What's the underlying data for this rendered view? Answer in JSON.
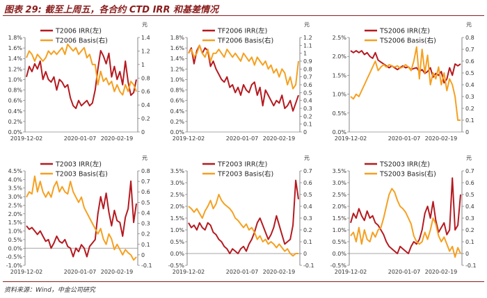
{
  "title": "图表 29: 截至上周五，各合约 CTD IRR 和基差情况",
  "source": "资料来源：Wind，中金公司研究",
  "colors": {
    "irr": "#b5191f",
    "basis": "#f5a020",
    "axis": "#666666",
    "zero": "#888888"
  },
  "chart_data": [
    {
      "type": "line",
      "name": "T2006",
      "legend": [
        "T2006 IRR(左)",
        "T2006 Basis(右)"
      ],
      "right_unit": "元",
      "x_ticks": [
        "2019-12-02",
        "2020-01-07",
        "2020-02-19"
      ],
      "left_ticks": [
        "0.0%",
        "0.2%",
        "0.4%",
        "0.6%",
        "0.8%",
        "1.0%",
        "1.2%",
        "1.4%",
        "1.6%",
        "1.8%"
      ],
      "right_ticks": [
        "0",
        "0.2",
        "0.4",
        "0.6",
        "0.8",
        "1",
        "1.2",
        "1.4"
      ],
      "ylim_left": [
        0,
        1.8
      ],
      "ylim_right": [
        0,
        1.4
      ],
      "series": [
        {
          "name": "T2006 IRR(左)",
          "axis": "left",
          "values": [
            1.05,
            1.25,
            1.15,
            1.3,
            1.2,
            1.35,
            1.0,
            1.15,
            1.0,
            0.95,
            1.05,
            0.8,
            1.0,
            0.95,
            0.85,
            0.9,
            0.65,
            0.5,
            0.45,
            0.6,
            0.5,
            0.55,
            0.6,
            0.5,
            0.55,
            0.8,
            1.2,
            1.55,
            1.45,
            1.3,
            1.5,
            1.05,
            1.25,
            1.0,
            1.15,
            0.9,
            1.35,
            0.95,
            0.7,
            0.75,
            1.0
          ]
        },
        {
          "name": "T2006 Basis(右)",
          "axis": "right",
          "values": [
            1.1,
            1.2,
            1.15,
            1.05,
            1.15,
            1.1,
            1.05,
            1.1,
            1.2,
            1.15,
            1.2,
            1.15,
            1.2,
            1.25,
            1.15,
            1.3,
            1.25,
            1.2,
            1.25,
            1.15,
            1.2,
            1.25,
            1.1,
            1.15,
            1.0,
            1.0,
            0.7,
            0.9,
            0.75,
            0.8,
            0.7,
            0.75,
            0.6,
            0.7,
            0.6,
            0.55,
            0.7,
            0.6,
            0.75,
            0.7,
            0.6
          ]
        }
      ]
    },
    {
      "type": "line",
      "name": "TF2006",
      "legend": [
        "TF2006 IRR(左)",
        "TF2006 Basis(右)"
      ],
      "right_unit": "元",
      "x_ticks": [
        "2019-12-02",
        "2020-01-07",
        "2020-02-19"
      ],
      "left_ticks": [
        "0.0%",
        "0.2%",
        "0.4%",
        "0.6%",
        "0.8%",
        "1.0%",
        "1.2%",
        "1.4%",
        "1.6%",
        "1.8%"
      ],
      "right_ticks": [
        "0",
        "0.1",
        "0.2",
        "0.3",
        "0.4",
        "0.5",
        "0.6",
        "0.7",
        "0.8",
        "0.9",
        "1",
        "1.1",
        "1.2"
      ],
      "ylim_left": [
        0,
        1.8
      ],
      "ylim_right": [
        0,
        1.2
      ],
      "series": [
        {
          "name": "TF2006 IRR(左)",
          "axis": "left",
          "values": [
            1.5,
            1.6,
            1.3,
            1.55,
            1.65,
            1.5,
            1.6,
            1.55,
            1.25,
            1.35,
            1.2,
            1.1,
            1.0,
            0.95,
            1.05,
            0.85,
            0.9,
            0.75,
            0.85,
            0.7,
            0.9,
            0.8,
            0.75,
            0.9,
            0.95,
            0.7,
            0.85,
            0.5,
            0.8,
            0.7,
            0.6,
            0.5,
            0.6,
            0.55,
            0.7,
            0.45,
            0.5,
            0.6,
            0.4,
            0.55,
            0.7
          ]
        },
        {
          "name": "TF2006 Basis(右)",
          "axis": "right",
          "values": [
            1.0,
            1.05,
            0.95,
            1.0,
            1.1,
            1.0,
            0.95,
            1.05,
            0.9,
            1.0,
            1.0,
            1.05,
            1.0,
            0.95,
            1.05,
            1.0,
            0.95,
            1.0,
            0.95,
            0.9,
            1.0,
            0.95,
            0.9,
            0.95,
            0.85,
            0.95,
            0.9,
            0.85,
            0.9,
            0.8,
            0.85,
            0.75,
            0.8,
            0.7,
            0.8,
            0.75,
            0.6,
            0.7,
            0.55,
            0.6,
            0.9
          ]
        }
      ]
    },
    {
      "type": "line",
      "name": "TS2006",
      "legend": [
        "TS2006 IRR(左)",
        "TS2006 Basis(右)"
      ],
      "right_unit": "元",
      "x_ticks": [
        "2019-12-02",
        "2020-01-07",
        "2020-02-19"
      ],
      "left_ticks": [
        "0.0%",
        "0.5%",
        "1.0%",
        "1.5%",
        "2.0%",
        "2.5%"
      ],
      "right_ticks": [
        "0",
        "0.1",
        "0.2",
        "0.3",
        "0.4",
        "0.5",
        "0.6",
        "0.7",
        "0.8"
      ],
      "ylim_left": [
        0,
        2.5
      ],
      "ylim_right": [
        0,
        0.8
      ],
      "series": [
        {
          "name": "TS2006 IRR(左)",
          "axis": "left",
          "values": [
            2.15,
            2.1,
            2.15,
            2.1,
            2.15,
            2.05,
            2.1,
            2.0,
            1.95,
            2.1,
            1.9,
            1.85,
            1.8,
            1.75,
            1.7,
            1.75,
            1.7,
            1.65,
            1.7,
            1.75,
            1.7,
            1.72,
            1.65,
            1.68,
            1.7,
            1.6,
            1.65,
            1.55,
            1.6,
            1.7,
            1.45,
            1.55,
            1.5,
            1.6,
            1.3,
            1.4,
            1.7,
            1.5,
            1.8,
            1.75,
            1.8
          ]
        },
        {
          "name": "TS2006 Basis(右)",
          "axis": "right",
          "values": [
            0.3,
            0.28,
            0.32,
            0.3,
            0.35,
            0.4,
            0.45,
            0.5,
            0.55,
            0.6,
            0.52,
            0.55,
            0.57,
            0.55,
            0.57,
            0.56,
            0.55,
            0.56,
            0.54,
            0.55,
            0.57,
            0.55,
            0.52,
            0.6,
            0.72,
            0.45,
            0.7,
            0.5,
            0.65,
            0.4,
            0.5,
            0.45,
            0.55,
            0.4,
            0.5,
            0.35,
            0.45,
            0.4,
            0.3,
            0.1,
            0.1
          ]
        }
      ]
    },
    {
      "type": "line",
      "name": "T2003",
      "legend": [
        "T2003 IRR(左)",
        "T2003 Basis(右)"
      ],
      "right_unit": "元",
      "x_ticks": [
        "2019-12-02",
        "2020-01-07",
        "2020-02-19"
      ],
      "left_ticks": [
        "-1.0%",
        "-0.5%",
        "0.0%",
        "0.5%",
        "1.0%",
        "1.5%",
        "2.0%",
        "2.5%",
        "3.0%",
        "3.5%",
        "4.0%",
        "4.5%"
      ],
      "right_ticks": [
        "-0.1",
        "0",
        "0.1",
        "0.2",
        "0.3",
        "0.4",
        "0.5",
        "0.6",
        "0.7",
        "0.8"
      ],
      "ylim_left": [
        -1.0,
        4.5
      ],
      "ylim_right": [
        -0.1,
        0.8
      ],
      "series": [
        {
          "name": "T2003 IRR(左)",
          "axis": "left",
          "values": [
            1.3,
            1.1,
            1.2,
            1.0,
            0.8,
            1.0,
            0.7,
            0.4,
            0.5,
            0.0,
            0.3,
            0.7,
            0.4,
            0.3,
            0.5,
            0.1,
            0.0,
            -0.5,
            0.0,
            -0.2,
            0.2,
            0.0,
            -0.5,
            0.1,
            0.3,
            0.5,
            2.0,
            3.0,
            2.3,
            3.2,
            2.1,
            1.3,
            2.2,
            1.6,
            1.5,
            0.7,
            1.8,
            2.3,
            3.9,
            1.5,
            2.6
          ]
        },
        {
          "name": "T2003 Basis(右)",
          "axis": "right",
          "values": [
            0.55,
            0.6,
            0.58,
            0.75,
            0.6,
            0.7,
            0.6,
            0.55,
            0.6,
            0.55,
            0.65,
            0.7,
            0.6,
            0.65,
            0.6,
            0.58,
            0.7,
            0.6,
            0.55,
            0.5,
            0.55,
            0.45,
            0.4,
            0.35,
            0.3,
            0.25,
            0.2,
            0.25,
            0.15,
            0.1,
            0.2,
            0.15,
            0.05,
            0.1,
            0.05,
            0.0,
            0.05,
            0.02,
            0.0,
            -0.05,
            -0.02
          ]
        }
      ]
    },
    {
      "type": "line",
      "name": "TF2003",
      "legend": [
        "TF2003 IRR(左)",
        "TF2003 Basis(右)"
      ],
      "right_unit": "元",
      "x_ticks": [
        "2019-12-02",
        "2020-01-07",
        "2020-02-19"
      ],
      "left_ticks": [
        "-0.5%",
        "0.0%",
        "0.5%",
        "1.0%",
        "1.5%",
        "2.0%",
        "2.5%",
        "3.0%",
        "3.5%"
      ],
      "right_ticks": [
        "-0.1",
        "0",
        "0.1",
        "0.2",
        "0.3",
        "0.4",
        "0.5",
        "0.6",
        "0.7"
      ],
      "ylim_left": [
        -0.5,
        3.5
      ],
      "ylim_right": [
        -0.1,
        0.7
      ],
      "series": [
        {
          "name": "TF2003 IRR(左)",
          "axis": "left",
          "values": [
            1.3,
            1.1,
            1.2,
            1.0,
            1.3,
            1.1,
            1.0,
            1.3,
            1.2,
            0.9,
            0.8,
            0.6,
            0.5,
            0.3,
            0.2,
            0.0,
            0.2,
            0.1,
            0.0,
            0.2,
            0.3,
            0.1,
            0.4,
            0.6,
            0.9,
            1.3,
            1.5,
            1.2,
            0.9,
            0.6,
            0.8,
            1.1,
            1.6,
            1.2,
            0.8,
            0.4,
            0.5,
            0.6,
            1.2,
            3.1,
            2.3
          ]
        },
        {
          "name": "TF2003 Basis(右)",
          "axis": "right",
          "values": [
            0.4,
            0.38,
            0.35,
            0.38,
            0.34,
            0.3,
            0.36,
            0.4,
            0.45,
            0.38,
            0.42,
            0.5,
            0.45,
            0.42,
            0.4,
            0.38,
            0.35,
            0.3,
            0.28,
            0.25,
            0.22,
            0.25,
            0.2,
            0.22,
            0.18,
            0.12,
            0.15,
            0.1,
            0.12,
            0.08,
            0.1,
            0.08,
            0.05,
            0.08,
            0.05,
            0.02,
            0.04,
            0.0,
            -0.02,
            0.0,
            0.0
          ]
        }
      ]
    },
    {
      "type": "line",
      "name": "TS2003",
      "legend": [
        "TS2003 IRR(左)",
        "TS2003 Basis(右)"
      ],
      "right_unit": "元",
      "x_ticks": [
        "2019-12-02",
        "2020-01-07",
        "2020-02-19"
      ],
      "left_ticks": [
        "-0.5%",
        "0.0%",
        "0.5%",
        "1.0%",
        "1.5%",
        "2.0%",
        "2.5%",
        "3.0%",
        "3.5%"
      ],
      "right_ticks": [
        "-0.1",
        "0",
        "0.1",
        "0.2",
        "0.3",
        "0.4",
        "0.5",
        "0.6",
        "0.7"
      ],
      "ylim_left": [
        -0.5,
        3.5
      ],
      "ylim_right": [
        -0.1,
        0.7
      ],
      "series": [
        {
          "name": "TS2003 IRR(左)",
          "axis": "left",
          "values": [
            1.3,
            1.7,
            1.5,
            1.9,
            1.6,
            1.4,
            1.8,
            1.5,
            1.6,
            1.3,
            1.2,
            1.0,
            0.8,
            0.5,
            0.3,
            0.2,
            0.1,
            0.0,
            0.3,
            0.2,
            0.1,
            0.0,
            0.3,
            0.5,
            0.4,
            0.6,
            1.0,
            1.7,
            2.0,
            1.5,
            2.2,
            1.4,
            0.9,
            1.1,
            1.3,
            0.8,
            1.0,
            3.2,
            1.0,
            1.2,
            2.5
          ]
        },
        {
          "name": "TS2003 Basis(右)",
          "axis": "right",
          "values": [
            0.15,
            0.18,
            0.1,
            0.22,
            0.08,
            0.2,
            0.12,
            0.1,
            0.18,
            0.14,
            0.2,
            0.22,
            0.3,
            0.4,
            0.5,
            0.55,
            0.52,
            0.45,
            0.4,
            0.38,
            0.35,
            0.3,
            0.25,
            0.15,
            0.1,
            0.08,
            0.1,
            0.18,
            0.12,
            0.2,
            0.3,
            0.25,
            0.15,
            0.1,
            0.14,
            0.08,
            0.02,
            0.06,
            -0.03,
            0.05,
            0.0
          ]
        }
      ]
    }
  ]
}
